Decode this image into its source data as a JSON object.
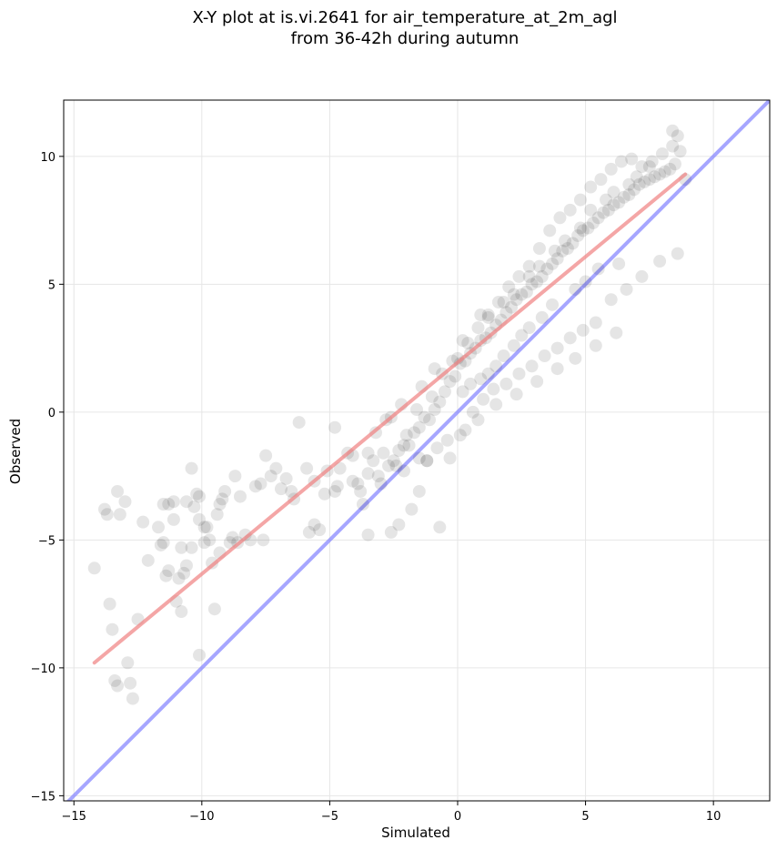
{
  "chart_data": {
    "type": "scatter",
    "title_lines": [
      "X-Y plot at is.vi.2641 for air_temperature_at_2m_agl",
      "from 36-42h during autumn"
    ],
    "xlabel": "Simulated",
    "ylabel": "Observed",
    "xlim": [
      -15.4,
      12.2
    ],
    "ylim": [
      -15.2,
      12.2
    ],
    "xticks": [
      -15,
      -10,
      -5,
      0,
      5,
      10
    ],
    "xtick_labels": [
      "−15",
      "−10",
      "−5",
      "0",
      "5",
      "10"
    ],
    "yticks": [
      -15,
      -10,
      -5,
      0,
      5,
      10
    ],
    "ytick_labels": [
      "−15",
      "−10",
      "−5",
      "0",
      "5",
      "10"
    ],
    "grid": true,
    "colors": {
      "points": "#000000",
      "fit_line": "#f08080",
      "identity_line": "#8080ff"
    },
    "identity_line": {
      "x": [
        -15.4,
        12.2
      ],
      "y": [
        -15.4,
        12.2
      ]
    },
    "fit_line": {
      "x": [
        -14.2,
        8.9
      ],
      "y": [
        -9.8,
        9.3
      ]
    },
    "series": [
      {
        "marker": "circle",
        "alpha": 0.1,
        "x": [
          -14.2,
          -13.8,
          -13.7,
          -13.3,
          -13.2,
          -13.6,
          -13.5,
          -13.4,
          -13.3,
          -12.8,
          -12.7,
          -12.9,
          -13.0,
          -12.5,
          -12.3,
          -11.7,
          -11.5,
          -11.3,
          -11.1,
          -11.5,
          -11.4,
          -11.0,
          -10.8,
          -10.7,
          -10.6,
          -10.4,
          -10.3,
          -10.2,
          -10.1,
          -9.9,
          -9.8,
          -9.7,
          -9.5,
          -9.4,
          -9.2,
          -9.1,
          -8.9,
          -8.7,
          -8.5,
          -8.3,
          -8.1,
          -7.9,
          -7.7,
          -7.5,
          -7.3,
          -7.1,
          -6.9,
          -6.7,
          -6.5,
          -10.1,
          -9.6,
          -10.6,
          -8.8,
          -7.6,
          -9.9,
          -10.9,
          -11.6,
          -12.1,
          -11.3,
          -10.4,
          -9.3,
          -8.6,
          -10.1,
          -9.3,
          -10.8,
          -11.1,
          -6.2,
          -5.8,
          -5.6,
          -5.6,
          -5.4,
          -5.2,
          -4.8,
          -4.6,
          -5.1,
          -4.3,
          -4.1,
          -3.9,
          -3.7,
          -3.5,
          -3.3,
          -3.1,
          -2.9,
          -2.7,
          -2.5,
          -2.3,
          -2.1,
          -1.9,
          -1.7,
          -1.5,
          -1.3,
          -1.1,
          -0.9,
          -0.7,
          -0.5,
          -0.3,
          -0.1,
          0.1,
          0.3,
          0.5,
          0.7,
          0.9,
          1.1,
          1.3,
          1.5,
          1.7,
          1.9,
          2.1,
          2.3,
          2.5,
          2.7,
          2.9,
          3.1,
          3.3,
          3.5,
          3.7,
          3.9,
          4.1,
          4.3,
          4.5,
          4.7,
          4.9,
          5.1,
          5.3,
          5.5,
          5.7,
          5.9,
          6.1,
          6.3,
          6.5,
          6.7,
          6.9,
          7.1,
          7.3,
          7.5,
          7.7,
          7.9,
          8.1,
          8.3,
          8.5,
          8.7,
          8.9,
          -4.8,
          -4.1,
          -3.2,
          -2.8,
          -2.2,
          -1.4,
          -0.9,
          -0.2,
          0.2,
          0.9,
          1.2,
          1.8,
          2.2,
          2.8,
          3.2,
          3.8,
          4.2,
          4.8,
          5.2,
          5.8,
          6.1,
          6.7,
          7.0,
          7.5,
          8.0,
          8.4,
          -3.5,
          -2.4,
          -1.5,
          -0.8,
          0.1,
          0.8,
          1.5,
          2.3,
          3.1,
          3.9,
          4.6,
          5.4,
          6.2,
          -6.4,
          -5.9,
          -4.7,
          -3.8,
          -3.0,
          -2.1,
          -1.2,
          -0.4,
          0.3,
          0.6,
          1.0,
          1.4,
          1.9,
          2.4,
          2.9,
          3.4,
          3.9,
          4.4,
          4.9,
          5.4,
          6.0,
          6.6,
          7.2,
          7.9,
          8.6,
          -2.6,
          -2.0,
          -1.6,
          -1.0,
          -0.6,
          0.0,
          0.4,
          0.8,
          1.2,
          1.6,
          2.0,
          2.4,
          2.8,
          3.2,
          3.6,
          4.0,
          4.4,
          4.8,
          5.2,
          5.6,
          6.0,
          6.4,
          6.8,
          7.2,
          7.6,
          -0.7,
          -3.5,
          -2.6,
          -2.3,
          -1.8,
          -1.5,
          -1.2,
          -0.3,
          0.2,
          0.5,
          0.9,
          1.2,
          1.5,
          1.8,
          2.2,
          2.5,
          2.8,
          3.3,
          3.7,
          4.6,
          5.0,
          5.5,
          6.3,
          8.4,
          8.6
        ],
        "y": [
          -6.1,
          -3.8,
          -4.0,
          -3.1,
          -4.0,
          -7.5,
          -8.5,
          -10.5,
          -10.7,
          -10.6,
          -11.2,
          -9.8,
          -3.5,
          -8.1,
          -4.3,
          -4.5,
          -3.6,
          -3.6,
          -4.2,
          -5.1,
          -6.4,
          -7.4,
          -7.8,
          -6.3,
          -3.5,
          -2.2,
          -3.7,
          -3.2,
          -3.3,
          -5.1,
          -4.5,
          -5.0,
          -7.7,
          -4.0,
          -3.4,
          -3.1,
          -5.1,
          -2.5,
          -3.3,
          -4.8,
          -5.0,
          -2.9,
          -2.8,
          -1.7,
          -2.5,
          -2.2,
          -3.0,
          -2.6,
          -3.1,
          -9.5,
          -5.9,
          -6.0,
          -4.9,
          -5.0,
          -4.5,
          -6.5,
          -5.2,
          -5.8,
          -6.2,
          -5.3,
          -5.5,
          -5.1,
          -4.2,
          -3.6,
          -5.3,
          -3.5,
          -0.4,
          -4.7,
          -4.4,
          -2.7,
          -4.6,
          -3.2,
          -3.1,
          -2.2,
          -2.3,
          -1.6,
          -2.7,
          -2.8,
          -3.6,
          -2.4,
          -1.9,
          -2.5,
          -1.6,
          -2.1,
          -1.9,
          -1.5,
          -1.3,
          -1.3,
          -0.8,
          -0.6,
          -0.2,
          -0.3,
          0.1,
          0.4,
          0.8,
          1.2,
          1.4,
          1.9,
          2.0,
          2.3,
          2.5,
          2.8,
          2.9,
          3.1,
          3.4,
          3.6,
          3.9,
          4.1,
          4.4,
          4.6,
          4.7,
          5.0,
          5.1,
          5.3,
          5.6,
          5.8,
          6.0,
          6.3,
          6.4,
          6.6,
          6.9,
          7.1,
          7.2,
          7.4,
          7.6,
          7.8,
          7.9,
          8.1,
          8.2,
          8.4,
          8.5,
          8.7,
          8.9,
          9.0,
          9.1,
          9.2,
          9.3,
          9.4,
          9.5,
          9.7,
          10.2,
          9.1,
          -0.6,
          -1.7,
          -0.8,
          -0.3,
          0.3,
          1.0,
          1.7,
          2.0,
          2.8,
          3.8,
          3.7,
          4.3,
          4.6,
          5.3,
          5.7,
          6.3,
          6.7,
          7.2,
          7.9,
          8.3,
          8.6,
          8.9,
          9.2,
          9.6,
          10.1,
          10.4,
          -1.6,
          -2.1,
          -1.8,
          -1.4,
          -0.9,
          -0.3,
          0.3,
          0.7,
          1.2,
          1.7,
          2.1,
          2.6,
          3.1,
          -3.4,
          -2.2,
          -2.9,
          -3.1,
          -2.8,
          -2.3,
          -1.9,
          -1.1,
          -0.7,
          0.0,
          0.5,
          0.9,
          1.1,
          1.5,
          1.8,
          2.2,
          2.5,
          2.9,
          3.2,
          3.5,
          4.4,
          4.8,
          5.3,
          5.9,
          6.2,
          -0.2,
          -0.9,
          0.1,
          0.6,
          1.5,
          2.1,
          2.7,
          3.3,
          3.8,
          4.3,
          4.9,
          5.3,
          5.7,
          6.4,
          7.1,
          7.6,
          7.9,
          8.3,
          8.8,
          9.1,
          9.5,
          9.8,
          9.9,
          9.6,
          9.8,
          -4.5,
          -4.8,
          -4.7,
          -4.4,
          -3.8,
          -3.1,
          -1.9,
          -1.8,
          0.8,
          1.1,
          1.3,
          1.5,
          1.8,
          2.2,
          2.6,
          3.0,
          3.3,
          3.7,
          4.2,
          4.8,
          5.1,
          5.6,
          5.8,
          11.0,
          10.8
        ]
      }
    ]
  }
}
